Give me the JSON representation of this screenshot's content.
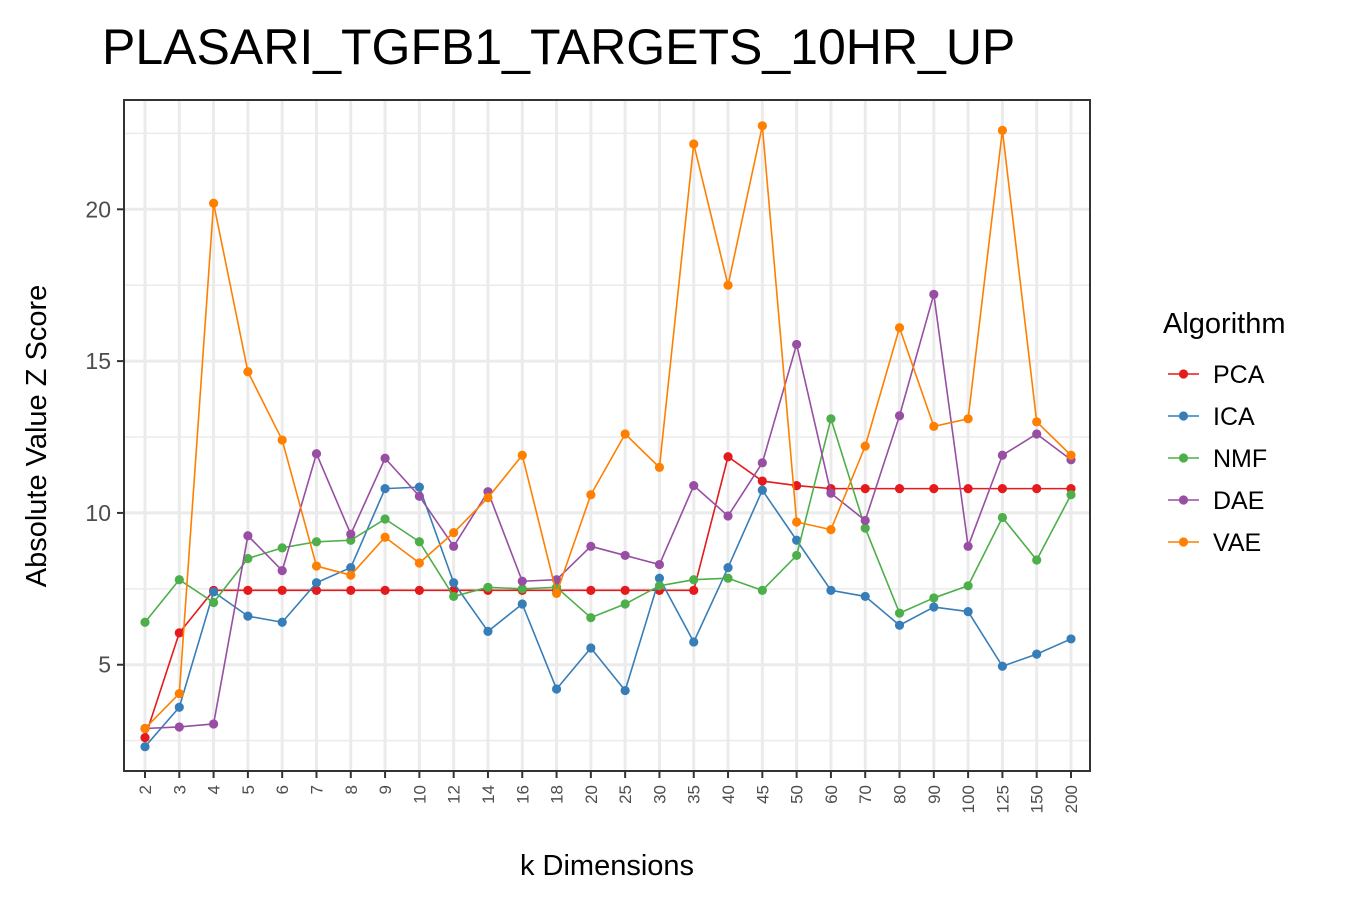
{
  "chart_data": {
    "type": "line",
    "title": "PLASARI_TGFB1_TARGETS_10HR_UP",
    "xlabel": "k Dimensions",
    "ylabel": "Absolute Value Z Score",
    "categories": [
      "2",
      "3",
      "4",
      "5",
      "6",
      "7",
      "8",
      "9",
      "10",
      "12",
      "14",
      "16",
      "18",
      "20",
      "25",
      "30",
      "35",
      "40",
      "45",
      "50",
      "60",
      "70",
      "80",
      "90",
      "100",
      "125",
      "150",
      "200"
    ],
    "ylim": [
      1.5,
      23.6
    ],
    "yticks": [
      5,
      10,
      15,
      20
    ],
    "grid": true,
    "legend": {
      "title": "Algorithm",
      "placement": "right"
    },
    "series": [
      {
        "name": "PCA",
        "color": "#e41a1c",
        "values": [
          2.6,
          6.05,
          7.45,
          7.45,
          7.45,
          7.45,
          7.45,
          7.45,
          7.45,
          7.45,
          7.45,
          7.45,
          7.45,
          7.45,
          7.45,
          7.45,
          7.45,
          11.85,
          11.05,
          10.9,
          10.8,
          10.8,
          10.8,
          10.8,
          10.8,
          10.8,
          10.8,
          10.8
        ]
      },
      {
        "name": "ICA",
        "color": "#377eb8",
        "values": [
          2.3,
          3.6,
          7.4,
          6.6,
          6.4,
          7.7,
          8.2,
          10.8,
          10.85,
          7.7,
          6.1,
          7.0,
          4.2,
          5.55,
          4.15,
          7.85,
          5.75,
          8.2,
          10.75,
          9.1,
          7.45,
          7.25,
          6.3,
          6.9,
          6.75,
          4.95,
          5.35,
          5.85
        ]
      },
      {
        "name": "NMF",
        "color": "#4daf4a",
        "values": [
          6.4,
          7.8,
          7.05,
          8.5,
          8.85,
          9.05,
          9.1,
          9.8,
          9.05,
          7.25,
          7.55,
          7.5,
          7.55,
          6.55,
          7.0,
          7.6,
          7.8,
          7.85,
          7.45,
          8.6,
          13.1,
          9.5,
          6.7,
          7.2,
          7.6,
          9.85,
          8.45,
          10.6
        ]
      },
      {
        "name": "DAE",
        "color": "#984ea3",
        "values": [
          2.9,
          2.95,
          3.05,
          9.25,
          8.1,
          11.95,
          9.3,
          11.8,
          10.55,
          8.9,
          10.7,
          7.75,
          7.8,
          8.9,
          8.6,
          8.3,
          10.9,
          9.9,
          11.65,
          15.55,
          10.65,
          9.75,
          13.2,
          17.2,
          8.9,
          11.9,
          12.6,
          11.75
        ]
      },
      {
        "name": "VAE",
        "color": "#ff7f00",
        "values": [
          2.9,
          4.05,
          20.2,
          14.65,
          12.4,
          8.25,
          7.95,
          9.2,
          8.35,
          9.35,
          10.5,
          11.9,
          7.35,
          10.6,
          12.6,
          11.5,
          22.15,
          17.5,
          22.75,
          9.7,
          9.45,
          12.2,
          16.1,
          12.85,
          13.1,
          22.6,
          13.0,
          11.9
        ]
      }
    ]
  }
}
